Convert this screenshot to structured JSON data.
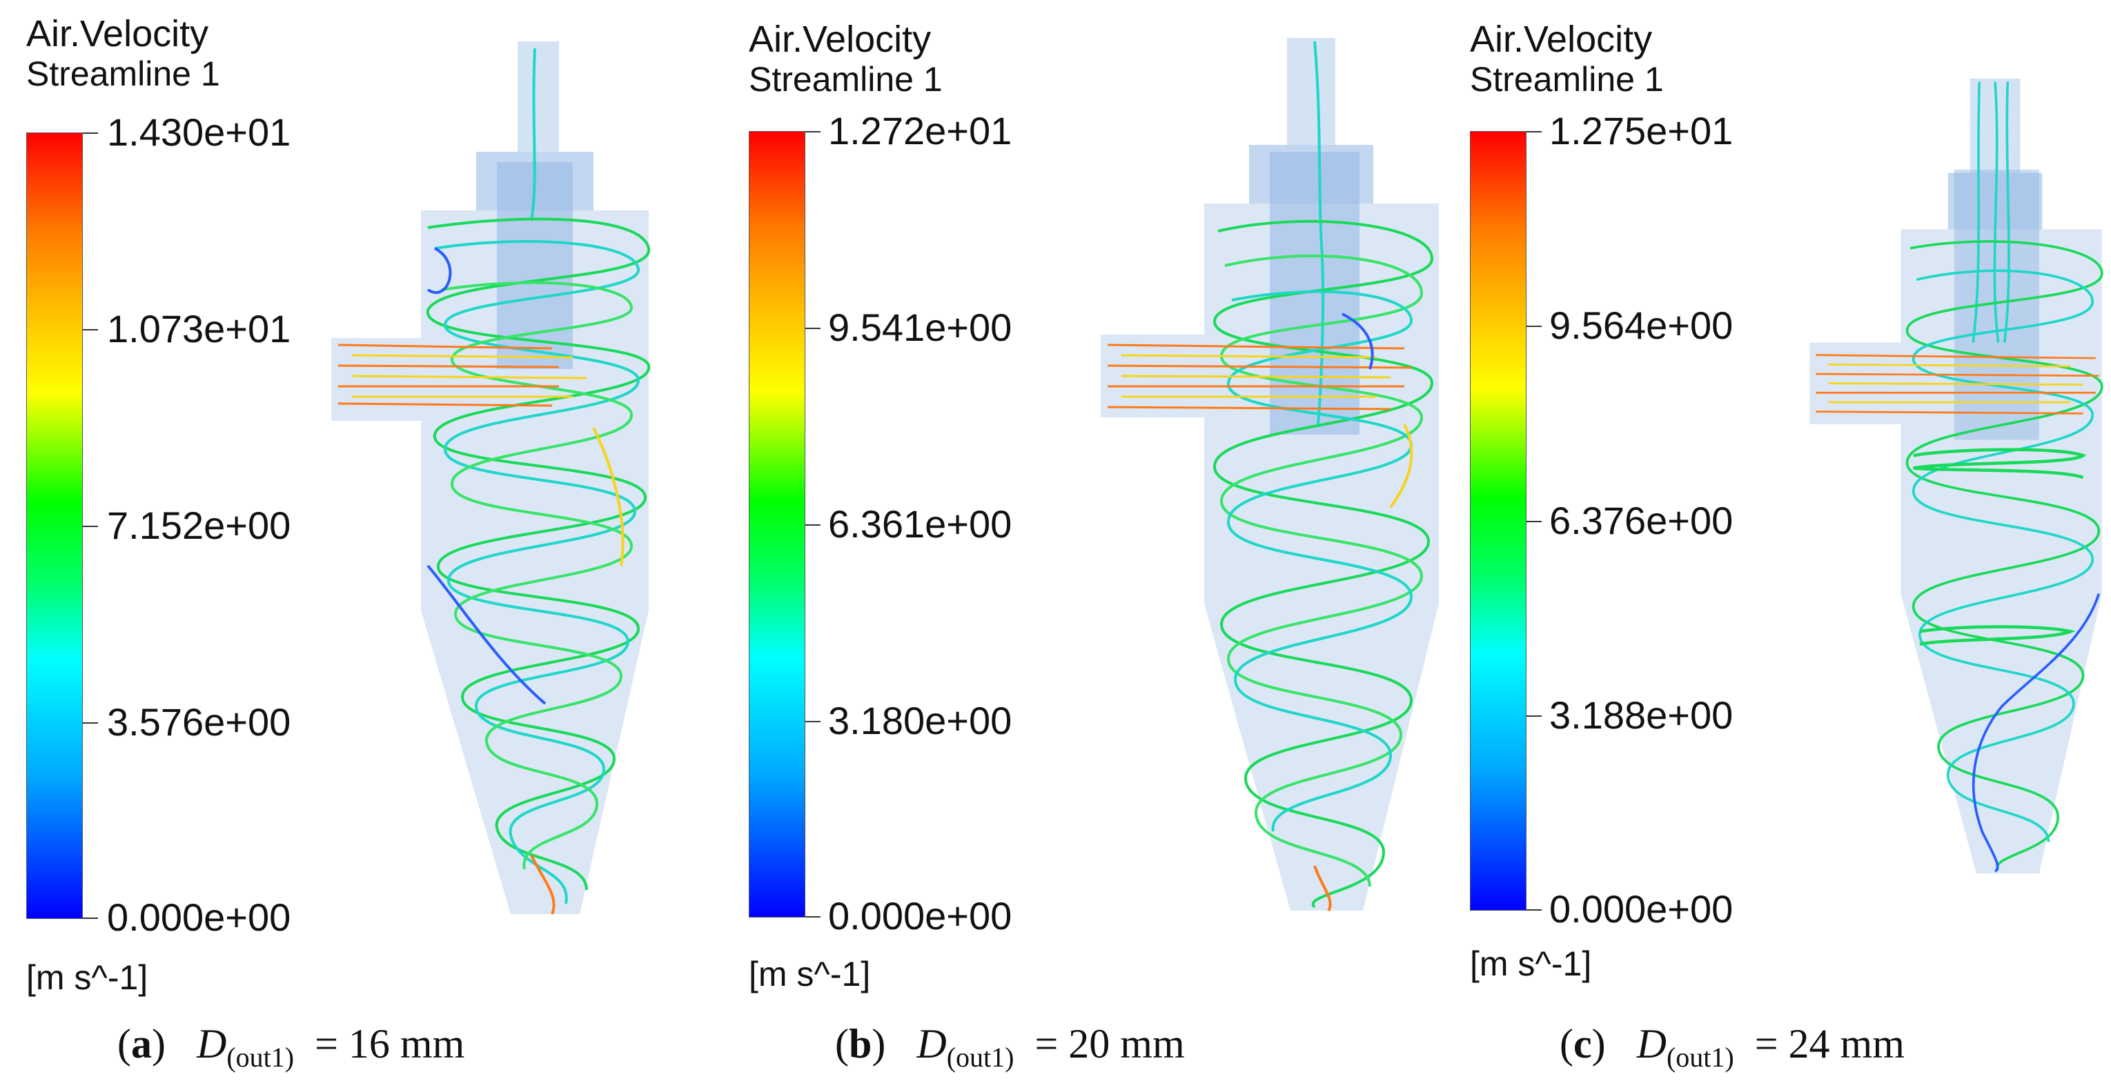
{
  "panels": [
    {
      "id": "a",
      "legend_title": "Air.Velocity",
      "legend_subtitle": "Streamline 1",
      "ticks": [
        "1.430e+01",
        "1.073e+01",
        "7.152e+00",
        "3.576e+00",
        "0.000e+00"
      ],
      "units": "[m s^-1]",
      "caption_label": "a",
      "caption_var": "D",
      "caption_sub": "(out1)",
      "caption_value": "= 16 mm"
    },
    {
      "id": "b",
      "legend_title": "Air.Velocity",
      "legend_subtitle": "Streamline 1",
      "ticks": [
        "1.272e+01",
        "9.541e+00",
        "6.361e+00",
        "3.180e+00",
        "0.000e+00"
      ],
      "units": "[m s^-1]",
      "caption_label": "b",
      "caption_var": "D",
      "caption_sub": "(out1)",
      "caption_value": "= 20 mm"
    },
    {
      "id": "c",
      "legend_title": "Air.Velocity",
      "legend_subtitle": "Streamline 1",
      "ticks": [
        "1.275e+01",
        "9.564e+00",
        "6.376e+00",
        "3.188e+00",
        "0.000e+00"
      ],
      "units": "[m s^-1]",
      "caption_label": "c",
      "caption_var": "D",
      "caption_sub": "(out1)",
      "caption_value": "= 24 mm"
    }
  ],
  "colors": {
    "cyclone_body": "#cfe0f3",
    "vortex_finder": "#8fb4e3",
    "streamline_main": "#19d95a",
    "streamline_secondary": "#1fd6c8",
    "streamline_fast": "#ff7a1a",
    "streamline_slow": "#2a5cff"
  }
}
